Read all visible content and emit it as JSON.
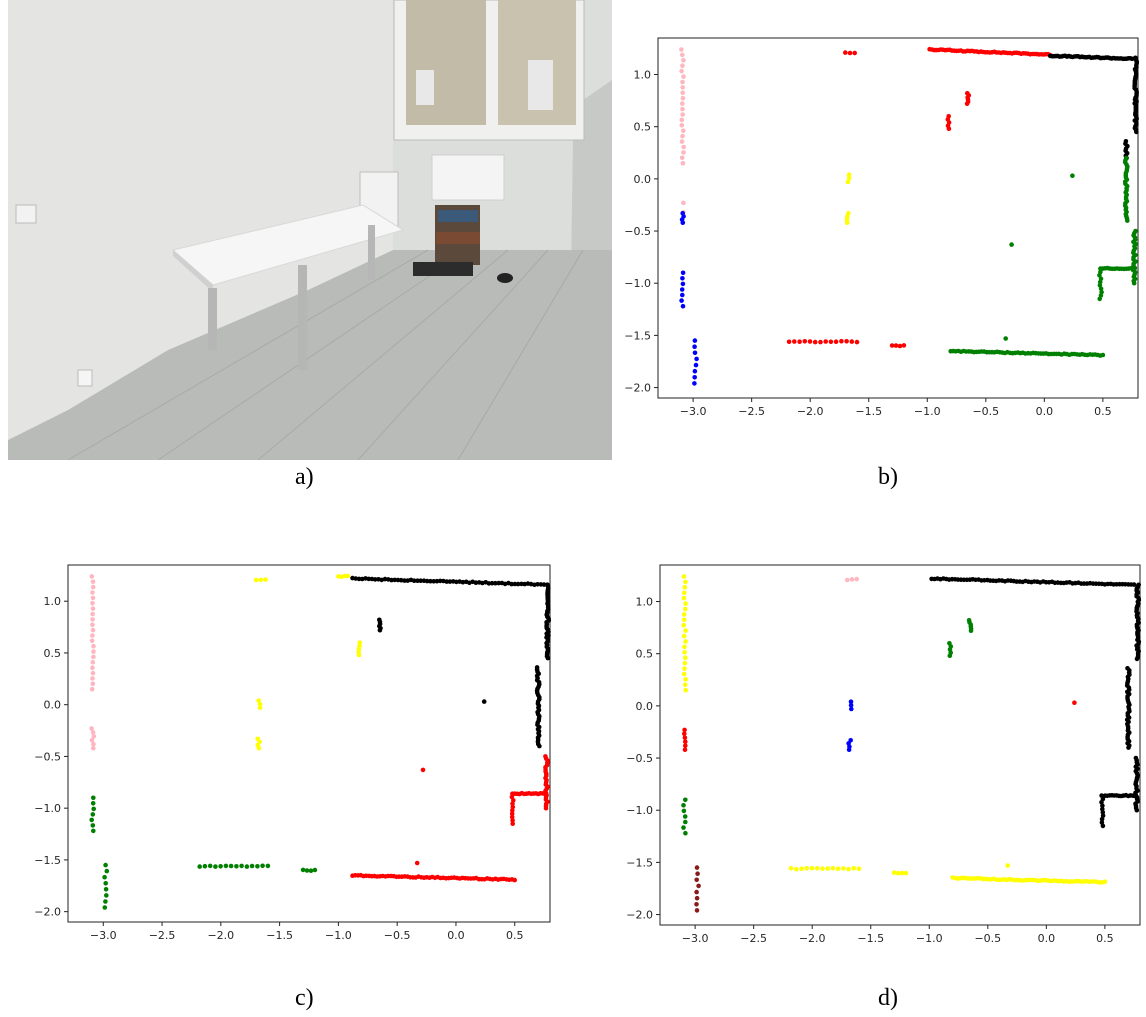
{
  "captions": {
    "a": "a)",
    "b": "b)",
    "c": "c)",
    "d": "d)"
  },
  "photo": {
    "description_icon": "room-photo"
  },
  "colors": {
    "pink": "#ffb6c1",
    "blue": "#0000ff",
    "red": "#ff0000",
    "yellow": "#ffff00",
    "green": "#008000",
    "black": "#000000",
    "brown": "#8b1a1a"
  },
  "chart_data": [
    {
      "type": "scatter",
      "panel": "b",
      "xlim": [
        -3.3,
        0.8
      ],
      "ylim": [
        -2.1,
        1.35
      ],
      "xticks": [
        "-3.0",
        "-2.5",
        "-2.0",
        "-1.5",
        "-1.0",
        "-0.5",
        "0.0",
        "0.5"
      ],
      "yticks": [
        "1.0",
        "0.5",
        "0.0",
        "-0.5",
        "-1.0",
        "-1.5",
        "-2.0"
      ],
      "clusters": {
        "A": "pink",
        "B": "blue",
        "C": "red",
        "D": "yellow",
        "E": "red",
        "F": "black",
        "G": "green",
        "H": "green",
        "I": "red",
        "J": "green",
        "K": "blue"
      }
    },
    {
      "type": "scatter",
      "panel": "c",
      "xlim": [
        -3.3,
        0.8
      ],
      "ylim": [
        -2.1,
        1.35
      ],
      "xticks": [
        "-3.0",
        "-2.5",
        "-2.0",
        "-1.5",
        "-1.0",
        "-0.5",
        "0.0",
        "0.5"
      ],
      "yticks": [
        "1.0",
        "0.5",
        "0.0",
        "-0.5",
        "-1.0",
        "-1.5",
        "-2.0"
      ],
      "clusters": {
        "A": "pink",
        "B": "pink",
        "C": "yellow",
        "D": "yellow",
        "E": "black",
        "F": "black",
        "G": "black",
        "H": "red",
        "I": "green",
        "J": "red",
        "K": "green"
      }
    },
    {
      "type": "scatter",
      "panel": "d",
      "xlim": [
        -3.3,
        0.8
      ],
      "ylim": [
        -2.1,
        1.35
      ],
      "xticks": [
        "-3.0",
        "-2.5",
        "-2.0",
        "-1.5",
        "-1.0",
        "-0.5",
        "0.0",
        "0.5"
      ],
      "yticks": [
        "1.0",
        "0.5",
        "0.0",
        "-0.5",
        "-1.0",
        "-1.5",
        "-2.0"
      ],
      "clusters": {
        "A": "yellow",
        "B": "red",
        "C": "pink",
        "D": "blue",
        "E": "green",
        "F": "black",
        "G": "black",
        "H": "red",
        "I": "yellow",
        "J": "black",
        "K": "green",
        "L": "brown"
      }
    }
  ]
}
